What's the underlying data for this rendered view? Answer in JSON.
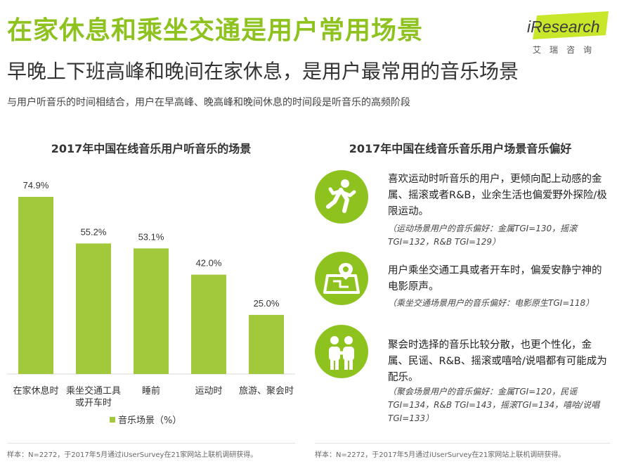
{
  "header": {
    "title": "在家休息和乘坐交通是用户常用场景",
    "title2": "早晚上下班高峰和晚间在家休息，是用户最常用的音乐场景",
    "subtitle": "与用户听音乐的时间相结合，用户在早高峰、晚高峰和晚间休息的时间段是听音乐的高频阶段"
  },
  "logo": {
    "brand": "iResearch",
    "sub": "艾瑞咨询"
  },
  "chart_data": {
    "type": "bar",
    "title": "2017年中国在线音乐用户听音乐的场景",
    "categories": [
      "在家休息时",
      "乘坐交通工具或开车时",
      "睡前",
      "运动时",
      "旅游、聚会时"
    ],
    "category_lines": [
      [
        "在家休息时"
      ],
      [
        "乘坐交通工具",
        "或开车时"
      ],
      [
        "睡前"
      ],
      [
        "运动时"
      ],
      [
        "旅游、聚会时"
      ]
    ],
    "series": [
      {
        "name": "音乐场景（%）",
        "values": [
          74.9,
          55.2,
          53.1,
          42.0,
          25.0
        ]
      }
    ],
    "value_labels": [
      "74.9%",
      "55.2%",
      "53.1%",
      "42.0%",
      "25.0%"
    ],
    "ylim": [
      0,
      100
    ],
    "legend_position": "bottom-left",
    "color": "#a2c83c"
  },
  "right_panel": {
    "title": "2017年中国在线音乐音乐用户场景音乐偏好",
    "scenes": [
      {
        "icon": "running-person-icon",
        "desc": "喜欢运动时听音乐的用户，更倾向配上动感的金属、摇滚或者R&B，业余生活也偏爱野外探险/极限运动。",
        "tgi": "（运动场景用户的音乐偏好：金属TGI=130，摇滚TGI=132，R&B TGI=129）"
      },
      {
        "icon": "map-location-icon",
        "desc": "用户乘坐交通工具或者开车时，偏爱安静宁神的电影原声。",
        "tgi": "（乘坐交通场景用户的音乐偏好：电影原生TGI=118）"
      },
      {
        "icon": "group-people-icon",
        "desc": "聚会时选择的音乐比较分散，也更个性化，金属、民谣、R&B、摇滚或嘻哈/说唱都有可能成为配乐。",
        "tgi": "（聚会场景用户的音乐偏好：金属TGI=120，民谣TGI=134，R&B TGI=143，摇滚TGI=134，嘻哈/说唱TGI=133）"
      }
    ]
  },
  "footer": {
    "left": "样本：N=2272，于2017年5月通过iUserSurvey在21家网站上联机调研获得。",
    "right": "样本：N=2272，于2017年5月通过iUserSurvey在21家网站上联机调研获得。"
  },
  "colors": {
    "accent": "#8dc21f",
    "bar": "#a2c83c"
  }
}
